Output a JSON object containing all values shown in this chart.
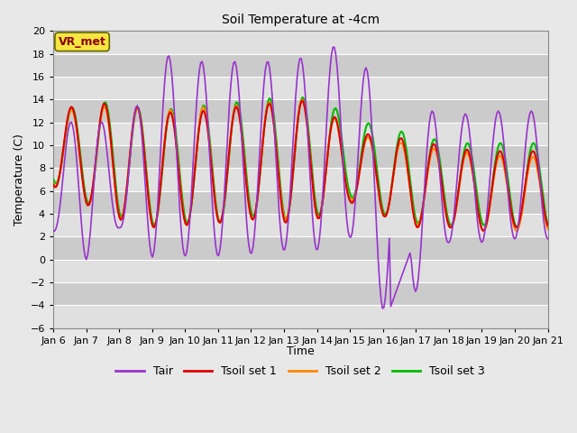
{
  "title": "Soil Temperature at -4cm",
  "xlabel": "Time",
  "ylabel": "Temperature (C)",
  "ylim": [
    -6,
    20
  ],
  "yticks": [
    -6,
    -4,
    -2,
    0,
    2,
    4,
    6,
    8,
    10,
    12,
    14,
    16,
    18,
    20
  ],
  "xtick_labels": [
    "Jan 6",
    "Jan 7",
    "Jan 8",
    "Jan 9",
    "Jan 10",
    "Jan 11",
    "Jan 12",
    "Jan 13",
    "Jan 14",
    "Jan 15",
    "Jan 16",
    "Jan 17",
    "Jan 18",
    "Jan 19",
    "Jan 20",
    "Jan 21"
  ],
  "annotation": "VR_met",
  "annotation_fgcolor": "#8B0000",
  "annotation_bgcolor": "#F5E642",
  "legend_entries": [
    "Tair",
    "Tsoil set 1",
    "Tsoil set 2",
    "Tsoil set 3"
  ],
  "line_colors": [
    "#9933CC",
    "#DD0000",
    "#FF8800",
    "#00BB00"
  ],
  "bg_color": "#E8E8E8",
  "plot_bg_color": "#DCDCDC",
  "band_colors": [
    "#E0E0E0",
    "#CBCBCB"
  ],
  "n_days": 15,
  "samples_per_day": 24
}
